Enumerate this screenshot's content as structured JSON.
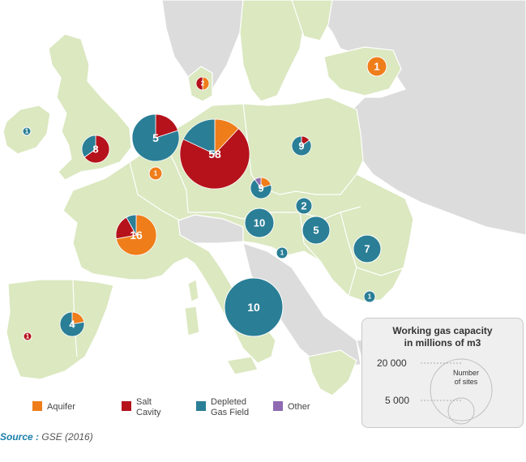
{
  "legend": {
    "title_line1": "Working gas capacity",
    "title_line2": "in millions of m3",
    "value_large": "20 000",
    "value_small": "5 000",
    "sites_line1": "Number",
    "sites_line2": "of sites"
  },
  "categories": [
    {
      "key": "aquifer",
      "label_line1": "Aquifer",
      "label_line2": "",
      "color": "#ef7d1a"
    },
    {
      "key": "salt",
      "label_line1": "Salt",
      "label_line2": "Cavity",
      "color": "#b5121b"
    },
    {
      "key": "depleted",
      "label_line1": "Depleted",
      "label_line2": "Gas Field",
      "color": "#2a7e96"
    },
    {
      "key": "other",
      "label_line1": "Other",
      "label_line2": "",
      "color": "#8e6bb1"
    }
  ],
  "source": {
    "label": "Source :",
    "text": "GSE (2016)"
  },
  "sites": [
    {
      "name": "Ireland",
      "count": "1",
      "shares": {
        "depleted": 1
      }
    },
    {
      "name": "United Kingdom",
      "count": "8",
      "shares": {
        "depleted": 0.35,
        "salt": 0.65
      }
    },
    {
      "name": "Netherlands",
      "count": "5",
      "shares": {
        "depleted": 0.8,
        "salt": 0.2
      }
    },
    {
      "name": "Germany",
      "count": "58",
      "shares": {
        "aquifer": 0.12,
        "salt": 0.7,
        "depleted": 0.18
      }
    },
    {
      "name": "Denmark",
      "count": "2",
      "shares": {
        "salt": 0.5,
        "aquifer": 0.5
      }
    },
    {
      "name": "Latvia",
      "count": "1",
      "shares": {
        "aquifer": 1
      }
    },
    {
      "name": "Poland",
      "count": "9",
      "shares": {
        "salt": 0.15,
        "depleted": 0.85
      }
    },
    {
      "name": "Belgium",
      "count": "1",
      "shares": {
        "aquifer": 1
      }
    },
    {
      "name": "Czech Republic",
      "count": "9",
      "shares": {
        "other": 0.1,
        "aquifer": 0.2,
        "depleted": 0.7
      }
    },
    {
      "name": "Slovakia",
      "count": "2",
      "shares": {
        "depleted": 1
      }
    },
    {
      "name": "Austria",
      "count": "10",
      "shares": {
        "depleted": 1
      }
    },
    {
      "name": "Hungary",
      "count": "5",
      "shares": {
        "depleted": 1
      }
    },
    {
      "name": "Romania",
      "count": "7",
      "shares": {
        "depleted": 1
      }
    },
    {
      "name": "Croatia",
      "count": "1",
      "shares": {
        "depleted": 1
      }
    },
    {
      "name": "Bulgaria",
      "count": "1",
      "shares": {
        "depleted": 1
      }
    },
    {
      "name": "France",
      "count": "16",
      "shares": {
        "aquifer": 0.72,
        "salt": 0.2,
        "depleted": 0.08
      }
    },
    {
      "name": "Italy",
      "count": "10",
      "shares": {
        "depleted": 1
      }
    },
    {
      "name": "Spain",
      "count": "4",
      "shares": {
        "aquifer": 0.22,
        "depleted": 0.78
      }
    },
    {
      "name": "Portugal",
      "count": "1",
      "shares": {
        "salt": 1
      }
    }
  ]
}
